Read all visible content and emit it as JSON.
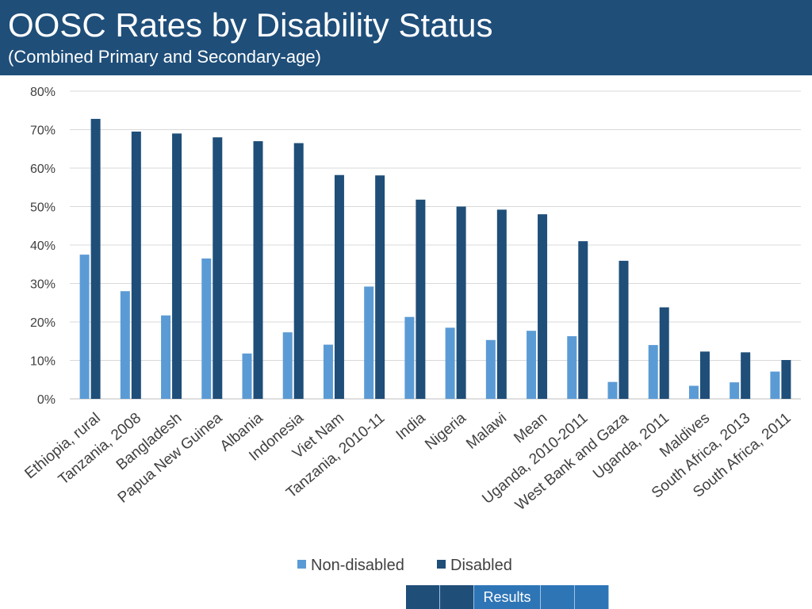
{
  "header": {
    "title": "OOSC Rates by Disability Status",
    "subtitle": "(Combined Primary and Secondary-age)"
  },
  "colors": {
    "header_bg": "#1f4e79",
    "non_disabled": "#5b9bd5",
    "disabled": "#1f4e79",
    "grid": "#d9d9d9",
    "nav_dark": "#1f4e79",
    "nav_light": "#2e75b6"
  },
  "chart_data": {
    "type": "bar",
    "title": "",
    "xlabel": "",
    "ylabel": "",
    "ylim": [
      0,
      80
    ],
    "y_ticks": [
      "0%",
      "10%",
      "20%",
      "30%",
      "40%",
      "50%",
      "60%",
      "70%",
      "80%"
    ],
    "grid": true,
    "legend_position": "bottom",
    "categories": [
      "Ethiopia, rural",
      "Tanzania, 2008",
      "Bangladesh",
      "Papua New Guinea",
      "Albania",
      "Indonesia",
      "Viet Nam",
      "Tanzania, 2010-11",
      "India",
      "Nigeria",
      "Malawi",
      "Mean",
      "Uganda, 2010-2011",
      "West Bank and Gaza",
      "Uganda, 2011",
      "Maldives",
      "South Africa, 2013",
      "South Africa, 2011"
    ],
    "series": [
      {
        "name": "Non-disabled",
        "values": [
          37.5,
          28,
          21.7,
          36.5,
          11.8,
          17.3,
          14.1,
          29.2,
          21.3,
          18.5,
          15.3,
          17.7,
          16.3,
          4.4,
          14,
          3.4,
          4.3,
          7.1
        ]
      },
      {
        "name": "Disabled",
        "values": [
          72.8,
          69.5,
          69,
          68,
          67,
          66.5,
          58.2,
          58.1,
          51.8,
          50,
          49.2,
          48,
          41,
          35.9,
          23.8,
          12.3,
          12.1,
          10.1
        ]
      }
    ]
  },
  "nav": {
    "active_label": "Results"
  }
}
